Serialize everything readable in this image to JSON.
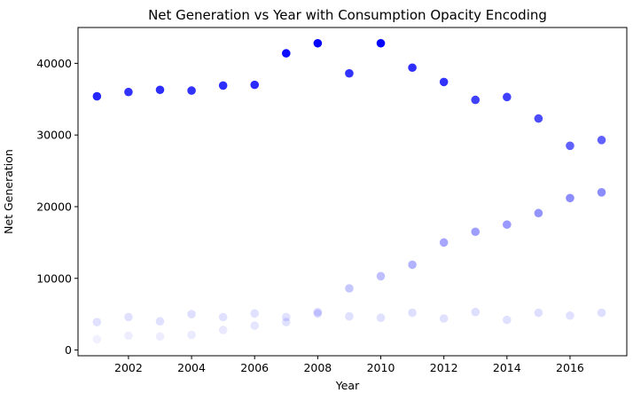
{
  "chart_data": {
    "type": "scatter",
    "title": "Net Generation vs Year with Consumption Opacity Encoding",
    "xlabel": "Year",
    "ylabel": "Net Generation",
    "xlim": [
      2000.4,
      2017.8
    ],
    "ylim": [
      -800,
      45000
    ],
    "xticks": [
      2002,
      2004,
      2006,
      2008,
      2010,
      2012,
      2014,
      2016
    ],
    "yticks": [
      0,
      10000,
      20000,
      30000,
      40000
    ],
    "grid": false,
    "marker_color": "#0000ff",
    "series": [
      {
        "x": [
          2001,
          2002,
          2003,
          2004,
          2005,
          2006,
          2007,
          2008,
          2009,
          2010,
          2011,
          2012,
          2013,
          2014,
          2015,
          2016,
          2017
        ],
        "y": [
          35400,
          36000,
          36300,
          36200,
          36900,
          37000,
          41400,
          42800,
          38600,
          42800,
          39400,
          37400,
          34900,
          35300,
          32300,
          28500,
          29300
        ],
        "opacity": [
          0.85,
          0.8,
          0.82,
          0.8,
          0.82,
          0.83,
          0.95,
          0.98,
          0.8,
          0.98,
          0.82,
          0.8,
          0.75,
          0.75,
          0.7,
          0.62,
          0.62
        ]
      },
      {
        "x": [
          2001,
          2002,
          2003,
          2004,
          2005,
          2006,
          2007,
          2008,
          2009,
          2010,
          2011,
          2012,
          2013,
          2014,
          2015,
          2016,
          2017
        ],
        "y": [
          1500,
          2000,
          1900,
          2100,
          2800,
          3400,
          3900,
          5100,
          8600,
          10300,
          11900,
          15000,
          16500,
          17500,
          19100,
          21200,
          22000
        ],
        "opacity": [
          0.06,
          0.07,
          0.07,
          0.08,
          0.09,
          0.1,
          0.12,
          0.15,
          0.22,
          0.25,
          0.3,
          0.35,
          0.38,
          0.4,
          0.42,
          0.45,
          0.45
        ]
      },
      {
        "x": [
          2001,
          2002,
          2003,
          2004,
          2005,
          2006,
          2007,
          2008,
          2009,
          2010,
          2011,
          2012,
          2013,
          2014,
          2015,
          2016,
          2017
        ],
        "y": [
          3900,
          4600,
          4000,
          5000,
          4600,
          5100,
          4600,
          5300,
          4700,
          4500,
          5200,
          4400,
          5300,
          4200,
          5200,
          4800,
          5200
        ],
        "opacity": [
          0.12,
          0.12,
          0.12,
          0.13,
          0.12,
          0.12,
          0.12,
          0.13,
          0.12,
          0.12,
          0.13,
          0.12,
          0.13,
          0.12,
          0.13,
          0.12,
          0.13
        ]
      }
    ]
  }
}
